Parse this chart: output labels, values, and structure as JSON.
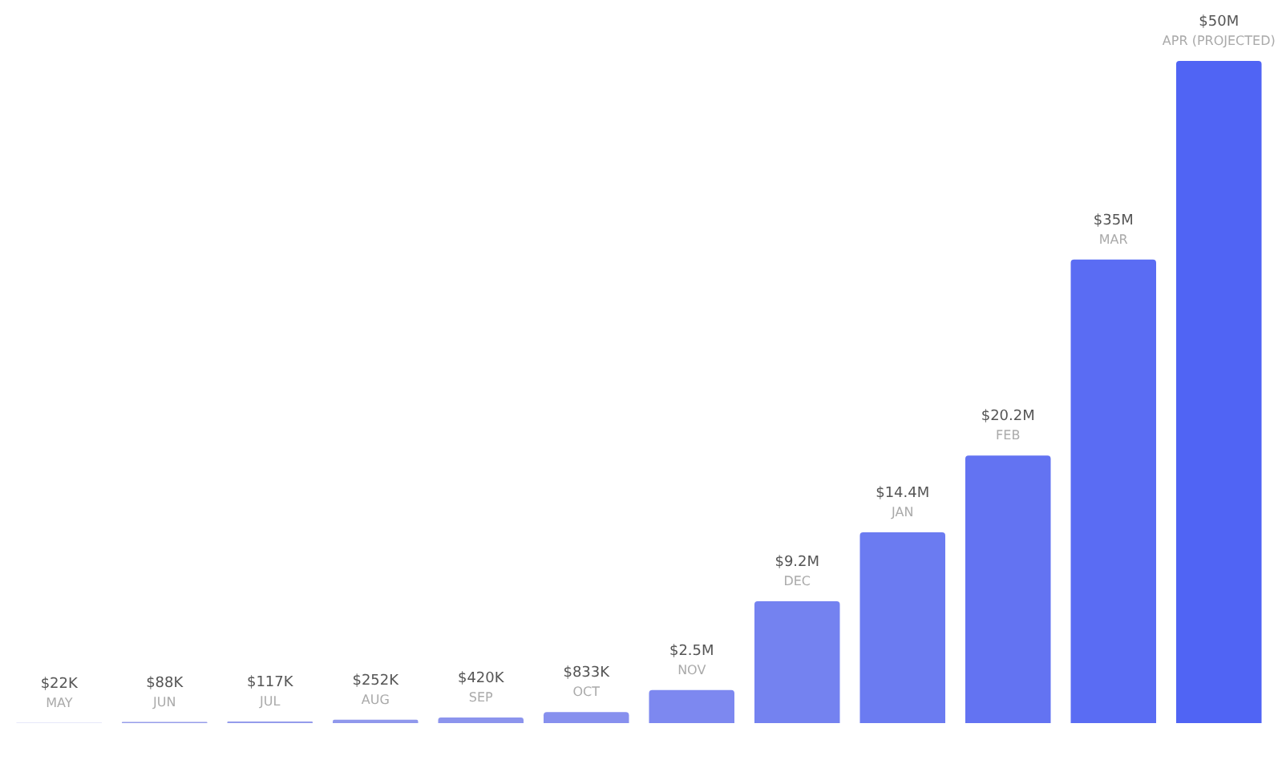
{
  "chart_data": {
    "type": "bar",
    "categories": [
      "MAY",
      "JUN",
      "JUL",
      "AUG",
      "SEP",
      "OCT",
      "NOV",
      "DEC",
      "JAN",
      "FEB",
      "MAR",
      "APR (PROJECTED)"
    ],
    "values": [
      22000,
      88000,
      117000,
      252000,
      420000,
      833000,
      2500000,
      9200000,
      14400000,
      20200000,
      35000000,
      50000000
    ],
    "value_labels": [
      "$22K",
      "$88K",
      "$117K",
      "$252K",
      "$420K",
      "$833K",
      "$2.5M",
      "$9.2M",
      "$14.4M",
      "$20.2M",
      "$35M",
      "$50M"
    ],
    "colors": [
      "#9aa0e8",
      "#979eea",
      "#949beb",
      "#9098ec",
      "#8c94ed",
      "#8790ee",
      "#7d88f0",
      "#7482f0",
      "#6b7bf1",
      "#6373f2",
      "#5a6cf3",
      "#5064f4"
    ]
  }
}
